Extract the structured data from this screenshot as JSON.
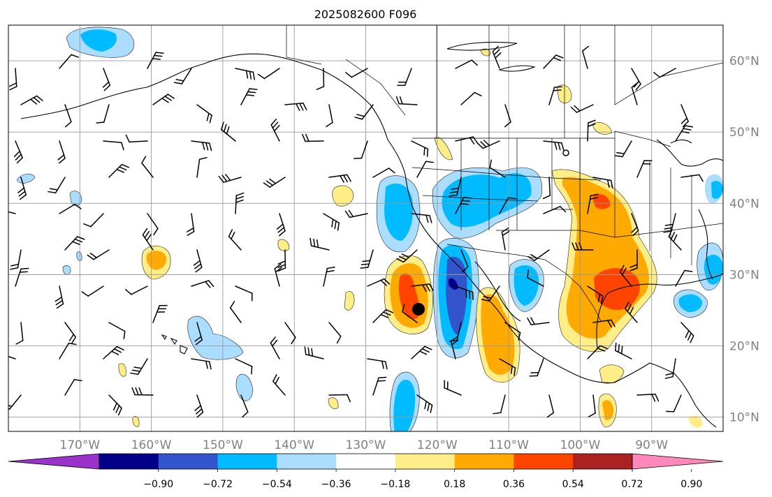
{
  "title": "2025082600 F096",
  "axes": {
    "x_ticks": [
      {
        "lon": -170,
        "label": "170°W"
      },
      {
        "lon": -160,
        "label": "160°W"
      },
      {
        "lon": -150,
        "label": "150°W"
      },
      {
        "lon": -140,
        "label": "140°W"
      },
      {
        "lon": -130,
        "label": "130°W"
      },
      {
        "lon": -120,
        "label": "120°W"
      },
      {
        "lon": -110,
        "label": "110°W"
      },
      {
        "lon": -100,
        "label": "100°W"
      },
      {
        "lon": -90,
        "label": "90°W"
      }
    ],
    "y_ticks": [
      {
        "lat": 60,
        "label": "60°N"
      },
      {
        "lat": 50,
        "label": "50°N"
      },
      {
        "lat": 40,
        "label": "40°N"
      },
      {
        "lat": 30,
        "label": "30°N"
      },
      {
        "lat": 20,
        "label": "20°N"
      },
      {
        "lat": 10,
        "label": "10°N"
      }
    ],
    "lon_range": [
      -180,
      -80
    ],
    "lat_range": [
      8,
      65
    ]
  },
  "colorbar": {
    "ticks": [
      "−0.90",
      "−0.72",
      "−0.54",
      "−0.36",
      "−0.18",
      "0.18",
      "0.36",
      "0.54",
      "0.72",
      "0.90"
    ],
    "colors": [
      "#9933cc",
      "#000088",
      "#3355cc",
      "#00bbff",
      "#aaddff",
      "#ffffff",
      "#ffee88",
      "#ffaa00",
      "#ff4400",
      "#aa2222",
      "#ff88bb"
    ]
  },
  "marker": {
    "name": "storm-center",
    "lon": -122.5,
    "lat": 25
  }
}
